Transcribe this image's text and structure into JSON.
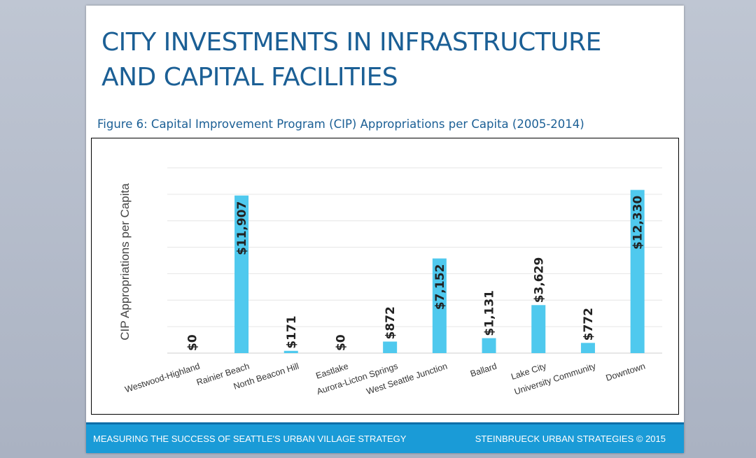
{
  "slide": {
    "title": "CITY INVESTMENTS IN INFRASTRUCTURE AND CAPITAL FACILITIES",
    "figure_caption": "Figure 6: Capital Improvement Program (CIP) Appropriations per Capita (2005-2014)"
  },
  "footer": {
    "left": "MEASURING THE SUCCESS OF SEATTLE'S URBAN VILLAGE STRATEGY",
    "right": "STEINBRUECK URBAN STRATEGIES © 2015"
  },
  "colors": {
    "bar": "#4fc9ee",
    "title": "#1b5f95",
    "footer": "#1a9bd7",
    "grid": "#e6e6e6"
  },
  "chart_data": {
    "type": "bar",
    "title": "",
    "xlabel": "",
    "ylabel": "CIP Appropriations per Capita",
    "categories": [
      "Westwood-Highland",
      "Rainier Beach",
      "North Beacon Hill",
      "Eastlake",
      "Aurora-Licton Springs",
      "West Seattle Junction",
      "Ballard",
      "Lake City",
      "University Community",
      "Downtown"
    ],
    "values": [
      0,
      11907,
      171,
      0,
      872,
      7152,
      1131,
      3629,
      772,
      12330
    ],
    "data_labels": [
      "$0",
      "$11,907",
      "$171",
      "$0",
      "$872",
      "$7,152",
      "$1,131",
      "$3,629",
      "$772",
      "$12,330"
    ],
    "ylim": [
      0,
      14000
    ],
    "grid": true,
    "legend": "none"
  }
}
